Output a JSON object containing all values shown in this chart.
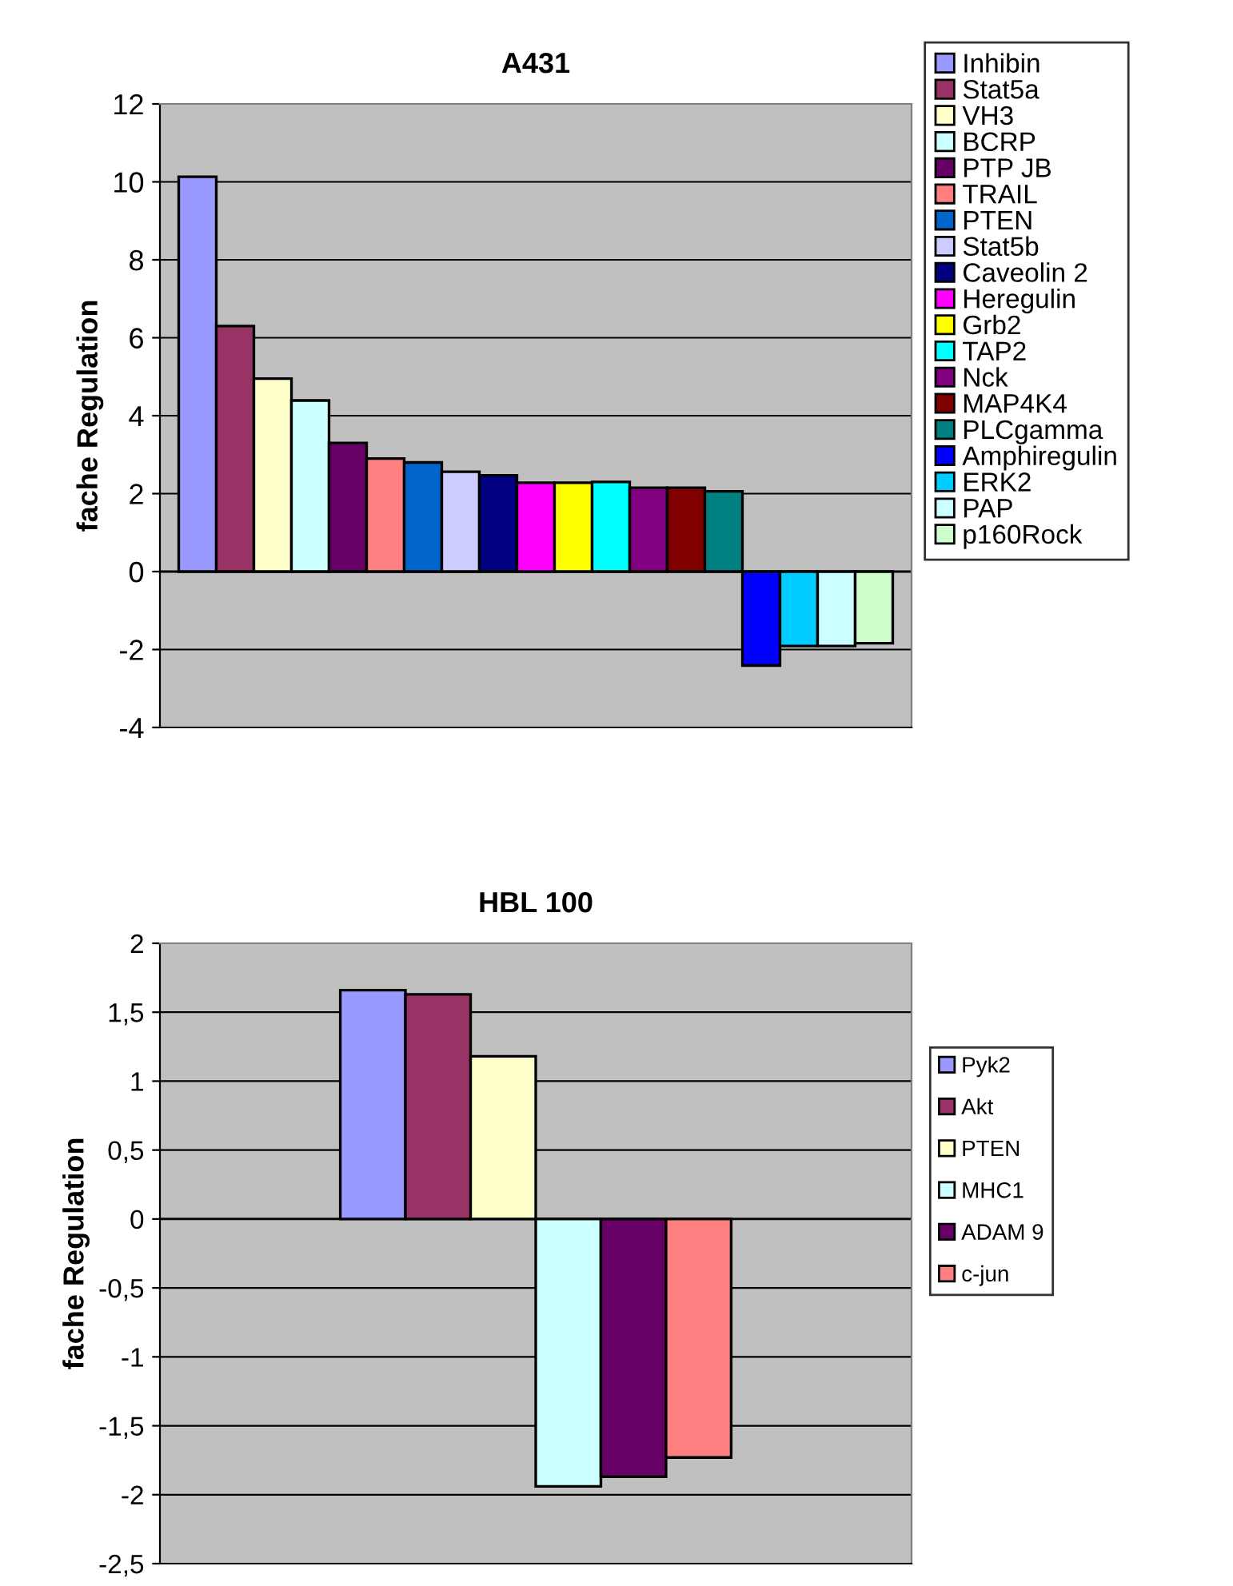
{
  "chart_data": [
    {
      "type": "bar",
      "title": "A431",
      "ylabel": "fache Regulation",
      "categories": [
        null
      ],
      "ylim": [
        -4,
        12
      ],
      "yticks": [
        -4,
        -2,
        0,
        2,
        4,
        6,
        8,
        10,
        12
      ],
      "grid": "y",
      "legend": "right",
      "series": [
        {
          "name": "Inhibin",
          "color": "#9999ff",
          "values": [
            10.13
          ]
        },
        {
          "name": "Stat5a",
          "color": "#993366",
          "values": [
            6.3
          ]
        },
        {
          "name": "VH3",
          "color": "#ffffcc",
          "values": [
            4.95
          ]
        },
        {
          "name": "BCRP",
          "color": "#ccffff",
          "values": [
            4.39
          ]
        },
        {
          "name": "PTP JB",
          "color": "#660066",
          "values": [
            3.3
          ]
        },
        {
          "name": "TRAIL",
          "color": "#ff8080",
          "values": [
            2.9
          ]
        },
        {
          "name": "PTEN",
          "color": "#0066cc",
          "values": [
            2.8
          ]
        },
        {
          "name": "Stat5b",
          "color": "#ccccff",
          "values": [
            2.56
          ]
        },
        {
          "name": "Caveolin 2",
          "color": "#000080",
          "values": [
            2.47
          ]
        },
        {
          "name": "Heregulin",
          "color": "#ff00ff",
          "values": [
            2.28
          ]
        },
        {
          "name": "Grb2",
          "color": "#ffff00",
          "values": [
            2.28
          ]
        },
        {
          "name": "TAP2",
          "color": "#00ffff",
          "values": [
            2.3
          ]
        },
        {
          "name": "Nck",
          "color": "#800080",
          "values": [
            2.15
          ]
        },
        {
          "name": "MAP4K4",
          "color": "#800000",
          "values": [
            2.15
          ]
        },
        {
          "name": "PLCgamma",
          "color": "#008080",
          "values": [
            2.06
          ]
        },
        {
          "name": "Amphiregulin",
          "color": "#0000ff",
          "values": [
            -2.41
          ]
        },
        {
          "name": "ERK2",
          "color": "#00ccff",
          "values": [
            -1.91
          ]
        },
        {
          "name": "PAP",
          "color": "#ccffff",
          "values": [
            -1.91
          ]
        },
        {
          "name": "p160Rock",
          "color": "#ccffcc",
          "values": [
            -1.84
          ]
        }
      ]
    },
    {
      "type": "bar",
      "title": "HBL 100",
      "ylabel": "fache Regulation",
      "categories": [
        null
      ],
      "ylim": [
        -2.5,
        2
      ],
      "yticks": [
        {
          "value": -2.5,
          "label": "-2,5"
        },
        -2,
        {
          "value": -1.5,
          "label": "-1,5"
        },
        -1,
        {
          "value": -0.5,
          "label": "-0,5"
        },
        0,
        {
          "value": 0.5,
          "label": "0,5"
        },
        1,
        {
          "value": 1.5,
          "label": "1,5"
        },
        2
      ],
      "grid": "y",
      "legend": "right",
      "series": [
        {
          "name": "Pyk2",
          "color": "#9999ff",
          "values": [
            1.66
          ]
        },
        {
          "name": "Akt",
          "color": "#993366",
          "values": [
            1.63
          ]
        },
        {
          "name": "PTEN",
          "color": "#ffffcc",
          "values": [
            1.18
          ]
        },
        {
          "name": "MHC1",
          "color": "#ccffff",
          "values": [
            -1.94
          ]
        },
        {
          "name": "ADAM 9",
          "color": "#660066",
          "values": [
            -1.87
          ]
        },
        {
          "name": "c-jun",
          "color": "#ff8080",
          "values": [
            -1.73
          ]
        }
      ]
    }
  ]
}
